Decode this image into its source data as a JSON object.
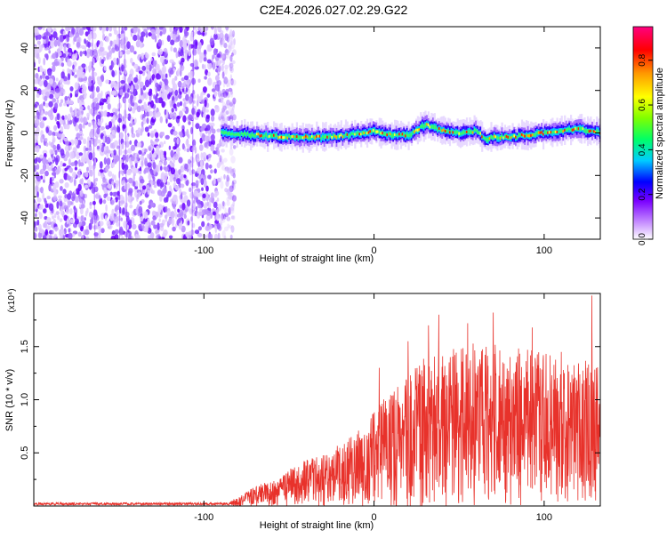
{
  "title": "C2E4.2026.027.02.29.G22",
  "chart_data": [
    {
      "type": "heatmap",
      "xlabel": "Height of straight line (km)",
      "ylabel": "Frequency (Hz)",
      "xlim": [
        -200,
        133
      ],
      "ylim": [
        -50,
        50
      ],
      "xticks": [
        -100,
        0,
        100
      ],
      "xtick_labels": [
        "-100",
        "0",
        "100"
      ],
      "yticks": [
        -40,
        -20,
        0,
        20,
        40
      ],
      "ytick_labels": [
        "-40",
        "-20",
        "0",
        "20",
        "40"
      ],
      "noise_region_km": [
        -200,
        -85
      ],
      "signal_start_km": -90,
      "center_freq_profile": {
        "x": [
          -90,
          -70,
          -50,
          -30,
          -15,
          0,
          10,
          20,
          30,
          40,
          50,
          60,
          65,
          70,
          80,
          90,
          100,
          110,
          120,
          133
        ],
        "y": [
          0,
          -1,
          -2,
          -2,
          -1,
          1,
          -1,
          -1,
          4,
          1,
          0,
          1,
          -3,
          -2,
          -2,
          -1,
          0,
          1,
          2,
          0
        ]
      },
      "colorbar": {
        "label": "Normalized spectral amplitude",
        "range": [
          0,
          0.95
        ],
        "ticks": [
          0,
          0.2,
          0.4,
          0.6,
          0.8
        ],
        "tick_labels": [
          "0.0",
          "0.2",
          "0.4",
          "0.6",
          "0.8"
        ],
        "colors": [
          "#ffffff",
          "#c58cff",
          "#7a00ff",
          "#0000ff",
          "#00ccff",
          "#00ff66",
          "#80ff00",
          "#ffff00",
          "#ff9900",
          "#ff0000",
          "#ff0080"
        ]
      }
    },
    {
      "type": "line",
      "xlabel": "Height of straight line (km)",
      "ylabel": "SNR (10 * v/v)",
      "scale_note": "(x10⁴)",
      "xlim": [
        -200,
        133
      ],
      "ylim": [
        0,
        2.0
      ],
      "xticks": [
        -100,
        0,
        100
      ],
      "xtick_labels": [
        "-100",
        "0",
        "100"
      ],
      "yticks": [
        0.5,
        1.0,
        1.5
      ],
      "ytick_labels": [
        "0.5",
        "1.0",
        "1.5"
      ],
      "color": "#e8322b",
      "envelope": {
        "x": [
          -200,
          -85,
          -75,
          -60,
          -40,
          -20,
          -5,
          0,
          10,
          20,
          30,
          40,
          50,
          60,
          70,
          80,
          90,
          100,
          110,
          120,
          130,
          133
        ],
        "y": [
          0.02,
          0.02,
          0.08,
          0.15,
          0.25,
          0.33,
          0.45,
          0.52,
          0.62,
          0.72,
          0.8,
          0.85,
          0.88,
          0.9,
          0.9,
          0.88,
          0.86,
          0.84,
          0.8,
          0.78,
          0.85,
          0.8
        ]
      },
      "peaks": [
        {
          "x": 3,
          "y": 1.3
        },
        {
          "x": 20,
          "y": 1.55
        },
        {
          "x": 32,
          "y": 1.7
        },
        {
          "x": 38,
          "y": 1.8
        },
        {
          "x": 55,
          "y": 1.72
        },
        {
          "x": 70,
          "y": 1.82
        },
        {
          "x": 93,
          "y": 1.68
        },
        {
          "x": 110,
          "y": 1.45
        },
        {
          "x": 128,
          "y": 1.98
        }
      ]
    }
  ]
}
